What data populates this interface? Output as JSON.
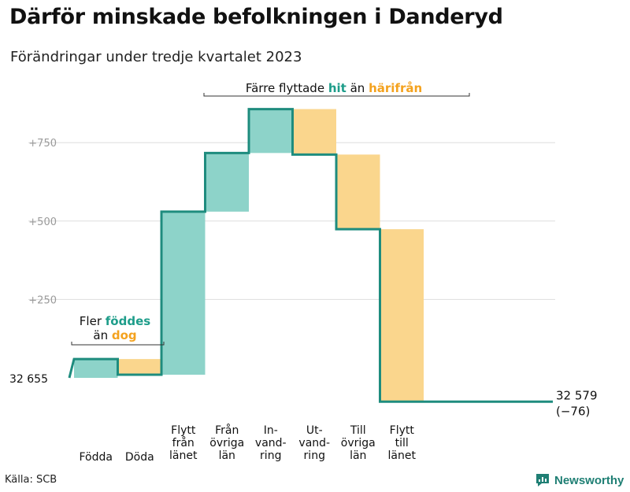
{
  "title": "Därför minskade befolkningen i Danderyd",
  "subtitle": "Förändringar under tredje kvartalet 2023",
  "source": "Källa: SCB",
  "brand": "Newsworthy",
  "colors": {
    "increase": "#8dd3c9",
    "decrease": "#fad68d",
    "line": "#1e8c7e",
    "accent_teal": "#1e9d8a",
    "accent_orange": "#f4a21e",
    "grid": "#dddddd",
    "tick": "#9a9a9a"
  },
  "annotations": {
    "left": {
      "line1": "Fler",
      "line1_em": "föddes",
      "line2": "än",
      "line2_em": "dog"
    },
    "top": {
      "pre": "Färre flyttade",
      "em1": "hit",
      "mid": "än",
      "em2": "härifrån"
    }
  },
  "chart_data": {
    "type": "waterfall",
    "baseline_label": "32 655",
    "start_value": 32655,
    "end_label_value": "32 579",
    "end_label_change": "(−76)",
    "yticks": [
      {
        "value": 250,
        "label": "+250"
      },
      {
        "value": 500,
        "label": "+500"
      },
      {
        "value": 750,
        "label": "+750"
      }
    ],
    "ylim": [
      -80,
      900
    ],
    "steps": [
      {
        "key": "fodda",
        "label": [
          "Födda"
        ],
        "change": 60
      },
      {
        "key": "doda",
        "label": [
          "Döda"
        ],
        "change": -50
      },
      {
        "key": "flytt_fran_lanet",
        "label": [
          "Flytt",
          "från",
          "länet"
        ],
        "change": 520
      },
      {
        "key": "fran_ovriga_lan",
        "label": [
          "Från",
          "övriga",
          "län"
        ],
        "change": 187
      },
      {
        "key": "invandring",
        "label": [
          "In-",
          "vand-",
          "ring"
        ],
        "change": 140
      },
      {
        "key": "utvandring",
        "label": [
          "Ut-",
          "vand-",
          "ring"
        ],
        "change": -145
      },
      {
        "key": "till_ovriga_lan",
        "label": [
          "Till",
          "övriga",
          "län"
        ],
        "change": -238
      },
      {
        "key": "flytt_till_lanet",
        "label": [
          "Flytt",
          "till",
          "länet"
        ],
        "change": -550
      }
    ]
  }
}
